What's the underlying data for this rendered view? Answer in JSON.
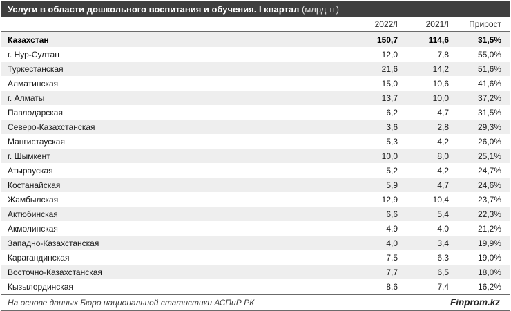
{
  "header": {
    "title": "Услуги в области дошкольного воспитания и обучения. I квартал",
    "unit": "(млрд тг)"
  },
  "table": {
    "columns": [
      "2022/I",
      "2021/I",
      "Прирост"
    ],
    "rows": [
      {
        "region": "Казахстан",
        "v2022": "150,7",
        "v2021": "114,6",
        "growth": "31,5%",
        "highlight": true
      },
      {
        "region": "г. Нур-Султан",
        "v2022": "12,0",
        "v2021": "7,8",
        "growth": "55,0%"
      },
      {
        "region": "Туркестанская",
        "v2022": "21,6",
        "v2021": "14,2",
        "growth": "51,6%"
      },
      {
        "region": "Алматинская",
        "v2022": "15,0",
        "v2021": "10,6",
        "growth": "41,6%"
      },
      {
        "region": "г. Алматы",
        "v2022": "13,7",
        "v2021": "10,0",
        "growth": "37,2%"
      },
      {
        "region": "Павлодарская",
        "v2022": "6,2",
        "v2021": "4,7",
        "growth": "31,5%"
      },
      {
        "region": "Северо-Казахстанская",
        "v2022": "3,6",
        "v2021": "2,8",
        "growth": "29,3%"
      },
      {
        "region": "Мангистауская",
        "v2022": "5,3",
        "v2021": "4,2",
        "growth": "26,0%"
      },
      {
        "region": "г. Шымкент",
        "v2022": "10,0",
        "v2021": "8,0",
        "growth": "25,1%"
      },
      {
        "region": "Атырауская",
        "v2022": "5,2",
        "v2021": "4,2",
        "growth": "24,7%"
      },
      {
        "region": "Костанайская",
        "v2022": "5,9",
        "v2021": "4,7",
        "growth": "24,6%"
      },
      {
        "region": "Жамбылская",
        "v2022": "12,9",
        "v2021": "10,4",
        "growth": "23,7%"
      },
      {
        "region": "Актюбинская",
        "v2022": "6,6",
        "v2021": "5,4",
        "growth": "22,3%"
      },
      {
        "region": "Акмолинская",
        "v2022": "4,9",
        "v2021": "4,0",
        "growth": "21,2%"
      },
      {
        "region": "Западно-Казахстанская",
        "v2022": "4,0",
        "v2021": "3,4",
        "growth": "19,9%"
      },
      {
        "region": "Карагандинская",
        "v2022": "7,5",
        "v2021": "6,3",
        "growth": "19,0%"
      },
      {
        "region": "Восточно-Казахстанская",
        "v2022": "7,7",
        "v2021": "6,5",
        "growth": "18,0%"
      },
      {
        "region": "Кызылординская",
        "v2022": "8,6",
        "v2021": "7,4",
        "growth": "16,2%"
      }
    ]
  },
  "footer": {
    "source": "На основе данных Бюро национальной статистики АСПиР РК",
    "brand": "Finprom.kz"
  },
  "colors": {
    "title_bar_bg": "#3f3f3f",
    "title_text": "#ffffff",
    "separator_line": "#6b6b6b",
    "row_stripe": "#eeeeee",
    "row_text": "#1a1a1a"
  },
  "chart_data": {
    "type": "table",
    "title": "Услуги в области дошкольного воспитания и обучения. I квартал (млрд тг)",
    "categories": [
      "Казахстан",
      "г. Нур-Султан",
      "Туркестанская",
      "Алматинская",
      "г. Алматы",
      "Павлодарская",
      "Северо-Казахстанская",
      "Мангистауская",
      "г. Шымкент",
      "Атырауская",
      "Костанайская",
      "Жамбылская",
      "Актюбинская",
      "Акмолинская",
      "Западно-Казахстанская",
      "Карагандинская",
      "Восточно-Казахстанская",
      "Кызылординская"
    ],
    "series": [
      {
        "name": "2022/I",
        "unit": "млрд тг",
        "values": [
          150.7,
          12.0,
          21.6,
          15.0,
          13.7,
          6.2,
          3.6,
          5.3,
          10.0,
          5.2,
          5.9,
          12.9,
          6.6,
          4.9,
          4.0,
          7.5,
          7.7,
          8.6
        ]
      },
      {
        "name": "2021/I",
        "unit": "млрд тг",
        "values": [
          114.6,
          7.8,
          14.2,
          10.6,
          10.0,
          4.7,
          2.8,
          4.2,
          8.0,
          4.2,
          4.7,
          10.4,
          5.4,
          4.0,
          3.4,
          6.3,
          6.5,
          7.4
        ]
      },
      {
        "name": "Прирост",
        "unit": "%",
        "values": [
          31.5,
          55.0,
          51.6,
          41.6,
          37.2,
          31.5,
          29.3,
          26.0,
          25.1,
          24.7,
          24.6,
          23.7,
          22.3,
          21.2,
          19.9,
          19.0,
          18.0,
          16.2
        ]
      }
    ]
  }
}
